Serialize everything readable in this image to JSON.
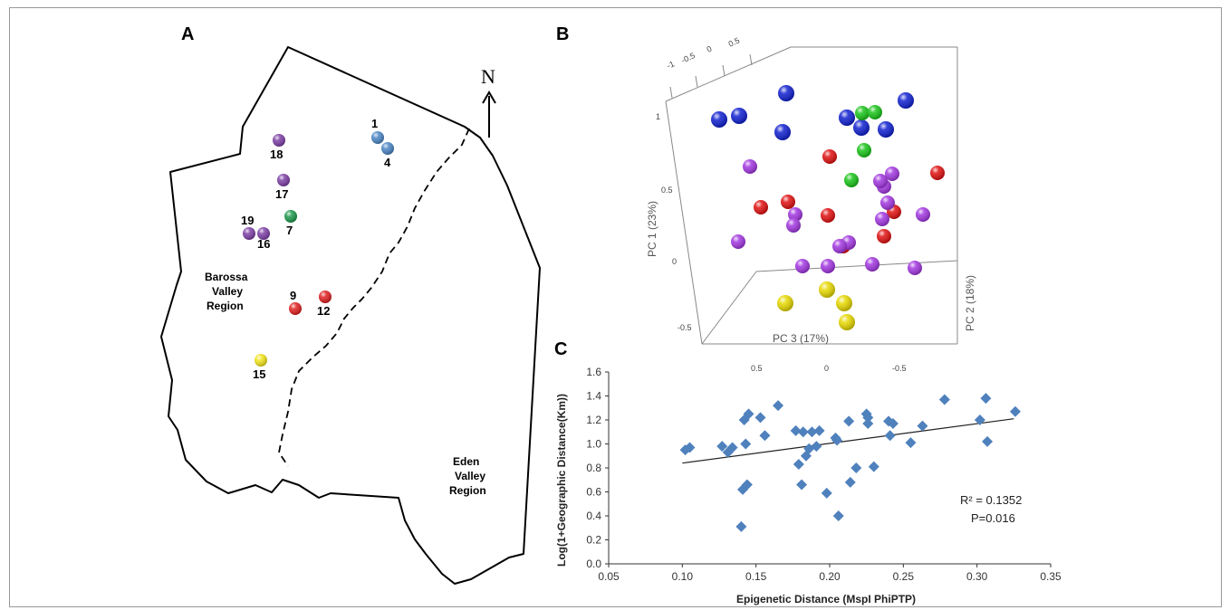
{
  "panels": {
    "a": "A",
    "b": "B",
    "c": "C"
  },
  "map": {
    "north_label": "N",
    "region_barossa": [
      "Barossa",
      "Valley",
      "Region"
    ],
    "region_eden": [
      "Eden",
      "Valley",
      "Region"
    ],
    "sites": [
      {
        "label": "1",
        "color": "#4a86c5"
      },
      {
        "label": "4",
        "color": "#4a86c5"
      },
      {
        "label": "18",
        "color": "#7d3fa6"
      },
      {
        "label": "17",
        "color": "#7d3fa6"
      },
      {
        "label": "7",
        "color": "#1e9a4c"
      },
      {
        "label": "19",
        "color": "#7d3fa6"
      },
      {
        "label": "16",
        "color": "#7d3fa6"
      },
      {
        "label": "9",
        "color": "#e02020"
      },
      {
        "label": "12",
        "color": "#e02020"
      },
      {
        "label": "15",
        "color": "#f2e41b"
      }
    ]
  },
  "pca": {
    "xlabel": "PC 3 (17%)",
    "ylabel": "PC 1 (23%)",
    "zlabel": "PC 2 (18%)",
    "top_ticks": [
      "-1",
      "-0.5",
      "0",
      "0.5"
    ],
    "left_ticks": [
      "1",
      "0.5",
      "0",
      "-0.5"
    ],
    "bottom_ticks": [
      "0.5",
      "0",
      "-0.5"
    ],
    "colors": {
      "blue": "#1020d0",
      "green": "#18c418",
      "red": "#e01010",
      "purple": "#a236e0",
      "yellow": "#e6d800"
    }
  },
  "chart_data": {
    "type": "scatter",
    "xlabel": "Epigenetic Distance (MspI PhiPTP)",
    "ylabel": "Log(1+Geographic Distance(Km))",
    "xlim": [
      0.05,
      0.35
    ],
    "ylim": [
      0.0,
      1.6
    ],
    "xticks": [
      "0.05",
      "0.10",
      "0.15",
      "0.20",
      "0.25",
      "0.30",
      "0.35"
    ],
    "yticks": [
      "0.0",
      "0.2",
      "0.4",
      "0.6",
      "0.8",
      "1.0",
      "1.2",
      "1.4",
      "1.6"
    ],
    "marker_color": "#4f81bd",
    "points": [
      [
        0.102,
        0.95
      ],
      [
        0.105,
        0.97
      ],
      [
        0.127,
        0.98
      ],
      [
        0.131,
        0.93
      ],
      [
        0.134,
        0.97
      ],
      [
        0.14,
        0.31
      ],
      [
        0.141,
        0.62
      ],
      [
        0.143,
        1.0
      ],
      [
        0.144,
        0.66
      ],
      [
        0.142,
        1.2
      ],
      [
        0.145,
        1.25
      ],
      [
        0.153,
        1.22
      ],
      [
        0.156,
        1.07
      ],
      [
        0.165,
        1.32
      ],
      [
        0.177,
        1.11
      ],
      [
        0.179,
        0.83
      ],
      [
        0.181,
        0.66
      ],
      [
        0.182,
        1.1
      ],
      [
        0.184,
        0.9
      ],
      [
        0.186,
        0.96
      ],
      [
        0.188,
        1.1
      ],
      [
        0.191,
        0.98
      ],
      [
        0.193,
        1.11
      ],
      [
        0.198,
        0.59
      ],
      [
        0.204,
        1.05
      ],
      [
        0.205,
        1.03
      ],
      [
        0.206,
        0.4
      ],
      [
        0.213,
        1.19
      ],
      [
        0.214,
        0.68
      ],
      [
        0.218,
        0.8
      ],
      [
        0.225,
        1.25
      ],
      [
        0.226,
        1.22
      ],
      [
        0.226,
        1.17
      ],
      [
        0.23,
        0.81
      ],
      [
        0.24,
        1.19
      ],
      [
        0.241,
        1.07
      ],
      [
        0.243,
        1.17
      ],
      [
        0.255,
        1.01
      ],
      [
        0.263,
        1.15
      ],
      [
        0.278,
        1.37
      ],
      [
        0.302,
        1.2
      ],
      [
        0.306,
        1.38
      ],
      [
        0.307,
        1.02
      ],
      [
        0.326,
        1.27
      ]
    ],
    "trendline": {
      "x": [
        0.1,
        0.325
      ],
      "y": [
        0.84,
        1.21
      ]
    },
    "r2_label": "R² = 0.1352",
    "p_label": "P=0.016"
  }
}
